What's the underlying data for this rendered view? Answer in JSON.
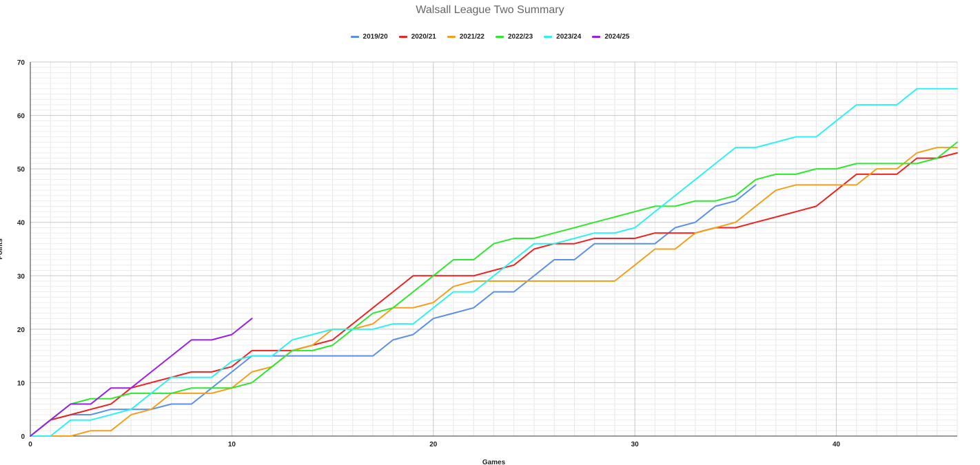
{
  "chart_data": {
    "type": "line",
    "title": "Walsall League Two Summary",
    "xlabel": "Games",
    "ylabel": "Points",
    "xlim": [
      0,
      46
    ],
    "ylim": [
      0,
      70
    ],
    "x_ticks": [
      0,
      10,
      20,
      30,
      40
    ],
    "y_ticks": [
      0,
      10,
      20,
      30,
      40,
      50,
      60,
      70
    ],
    "grid": true,
    "legend_position": "top",
    "series": [
      {
        "name": "2019/20",
        "color": "#5b8fe8",
        "values": [
          0,
          3,
          4,
          4,
          5,
          5,
          5,
          6,
          6,
          9,
          12,
          15,
          15,
          15,
          15,
          15,
          15,
          15,
          18,
          19,
          22,
          23,
          24,
          27,
          27,
          30,
          33,
          33,
          36,
          36,
          36,
          36,
          39,
          40,
          43,
          44,
          47
        ]
      },
      {
        "name": "2020/21",
        "color": "#ee2222",
        "values": [
          0,
          3,
          4,
          5,
          6,
          9,
          10,
          11,
          12,
          12,
          13,
          16,
          16,
          16,
          17,
          18,
          21,
          24,
          27,
          30,
          30,
          30,
          30,
          31,
          32,
          35,
          36,
          36,
          37,
          37,
          37,
          38,
          38,
          38,
          39,
          39,
          40,
          41,
          42,
          43,
          46,
          49,
          49,
          49,
          52,
          52,
          53
        ]
      },
      {
        "name": "2021/22",
        "color": "#f49f1c",
        "values": [
          0,
          0,
          0,
          1,
          1,
          4,
          5,
          8,
          8,
          8,
          9,
          12,
          13,
          16,
          17,
          20,
          20,
          21,
          24,
          24,
          25,
          28,
          29,
          29,
          29,
          29,
          29,
          29,
          29,
          29,
          32,
          35,
          35,
          38,
          39,
          40,
          43,
          46,
          47,
          47,
          47,
          47,
          50,
          50,
          53,
          54,
          54
        ]
      },
      {
        "name": "2022/23",
        "color": "#2de82d",
        "values": [
          0,
          3,
          6,
          7,
          7,
          8,
          8,
          8,
          9,
          9,
          9,
          10,
          13,
          16,
          16,
          17,
          20,
          23,
          24,
          27,
          30,
          33,
          33,
          36,
          37,
          37,
          38,
          39,
          40,
          41,
          42,
          43,
          43,
          44,
          44,
          45,
          48,
          49,
          49,
          50,
          50,
          51,
          51,
          51,
          51,
          52,
          55
        ]
      },
      {
        "name": "2023/24",
        "color": "#2ef2f2",
        "values": [
          0,
          0,
          3,
          3,
          4,
          5,
          8,
          11,
          11,
          11,
          14,
          15,
          15,
          18,
          19,
          20,
          20,
          20,
          21,
          21,
          24,
          27,
          27,
          30,
          33,
          36,
          36,
          37,
          38,
          38,
          39,
          42,
          45,
          48,
          51,
          54,
          54,
          55,
          56,
          56,
          59,
          62,
          62,
          62,
          65,
          65,
          65
        ]
      },
      {
        "name": "2024/25",
        "color": "#9b1de8",
        "values": [
          0,
          3,
          6,
          6,
          9,
          9,
          12,
          15,
          18,
          18,
          19,
          22
        ]
      }
    ]
  }
}
